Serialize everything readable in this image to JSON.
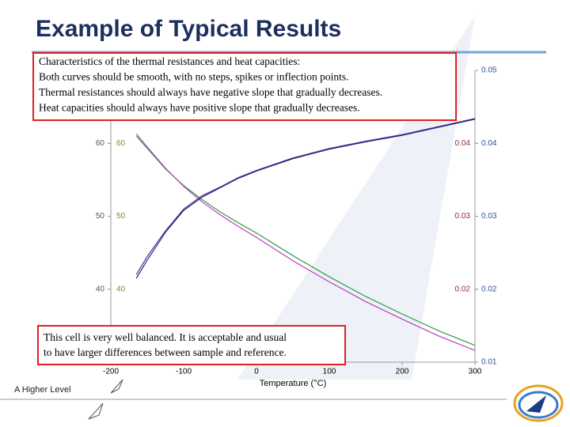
{
  "header": {
    "title": "Example of Typical Results"
  },
  "top_note": {
    "lines": [
      "Characteristics of the thermal resistances and heat capacities:",
      "Both curves should be smooth, with no steps, spikes or inflection points.",
      "Thermal resistances should always have negative slope that gradually decreases.",
      "Heat capacities should always have positive slope that gradually decreases."
    ]
  },
  "bottom_note": {
    "lines": [
      "This cell is very well balanced.  It is acceptable and usual",
      "to have larger differences between sample and reference."
    ]
  },
  "footer": {
    "tagline": "A Higher Level"
  },
  "chart_data": {
    "type": "line",
    "xlabel": "Temperature (°C)",
    "x": [
      -165,
      -150,
      -125,
      -100,
      -75,
      -50,
      -25,
      0,
      50,
      100,
      150,
      200,
      250,
      300
    ],
    "xlim": [
      -200,
      300
    ],
    "xticks": [
      -200,
      -100,
      0,
      100,
      200,
      300
    ],
    "ylim": [
      30,
      70
    ],
    "yticks": [
      40,
      50,
      60
    ],
    "ytick_color": "#555555",
    "yticks_inner": [
      40,
      50,
      60
    ],
    "yticks_inner_color": "#8a8a1a",
    "y2lim": [
      0.01,
      0.05
    ],
    "y2ticks": [
      0.01,
      0.02,
      0.03,
      0.04,
      0.05
    ],
    "y2tick_color": "#2f4f9f",
    "y2ticks_inner": [
      0.02,
      0.03,
      0.04
    ],
    "y2ticks_inner_color": "#8b2f2f",
    "series": [
      {
        "color": "#2e9e3e",
        "values": [
          61,
          59.3,
          56.5,
          54.2,
          52.3,
          50.6,
          49.1,
          47.7,
          44.6,
          41.7,
          39.0,
          36.6,
          34.3,
          32.3
        ]
      },
      {
        "color": "#c03cc0",
        "values": [
          61.3,
          59.5,
          56.6,
          54.1,
          52.0,
          50.2,
          48.6,
          47.1,
          43.9,
          41.0,
          38.3,
          35.9,
          33.6,
          31.6
        ]
      },
      {
        "color": "#6a2a9a",
        "axis": "y2",
        "values": [
          0.022,
          0.0245,
          0.028,
          0.031,
          0.0328,
          0.034,
          0.0353,
          0.0363,
          0.038,
          0.0393,
          0.0403,
          0.0412,
          0.0423,
          0.0434
        ]
      },
      {
        "color": "#1a2a7a",
        "axis": "y2",
        "values": [
          0.0215,
          0.024,
          0.0278,
          0.0308,
          0.0326,
          0.0339,
          0.0352,
          0.0362,
          0.0379,
          0.0392,
          0.0402,
          0.0411,
          0.0422,
          0.0433
        ]
      }
    ]
  }
}
